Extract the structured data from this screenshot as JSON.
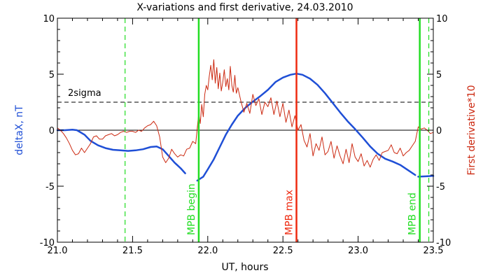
{
  "chart_data": {
    "type": "line",
    "title": "X-variations and first derivative, 24.03.2010",
    "xlabel": "UT, hours",
    "ylabel_left": "deltaX, nT",
    "ylabel_right": "First derivative*10",
    "xlim": [
      21.0,
      23.5
    ],
    "ylim": [
      -10,
      10
    ],
    "x_ticks": [
      "21.0",
      "21.5",
      "22.0",
      "22.5",
      "23.0",
      "23.5"
    ],
    "y_ticks_left": [
      "10",
      "5",
      "0",
      "-5",
      "-10"
    ],
    "y_ticks_right": [
      "10",
      "5",
      "0",
      "-5",
      "-10"
    ],
    "colors": {
      "deltax": "#1f4fd6",
      "derivative": "#cc2a12",
      "mpb_line": "#22dd22",
      "max_line": "#ee2a10",
      "axes": "#000000"
    },
    "reference_lines": [
      {
        "label": "2sigma",
        "y": 2.5,
        "style": "dashed"
      },
      {
        "label": "",
        "y": 0,
        "style": "solid"
      }
    ],
    "vertical_markers": [
      {
        "label": "",
        "x": 21.45,
        "style": "dashed",
        "color": "#22dd22"
      },
      {
        "label": "MPB begin",
        "x": 21.94,
        "style": "solid",
        "color": "#22dd22"
      },
      {
        "label": "MPB max",
        "x": 22.59,
        "style": "solid",
        "color": "#ee2a10"
      },
      {
        "label": "MPB end",
        "x": 23.41,
        "style": "solid",
        "color": "#22dd22"
      },
      {
        "label": "",
        "x": 23.47,
        "style": "dashed",
        "color": "#22dd22"
      }
    ],
    "series": [
      {
        "color": "#1f4fd6",
        "axis": "left",
        "segments": [
          {
            "x": [
              21.0,
              21.05,
              21.1,
              21.13,
              21.18,
              21.22,
              21.27,
              21.32,
              21.37,
              21.42,
              21.47,
              21.52,
              21.57,
              21.62,
              21.66,
              21.7,
              21.74,
              21.78,
              21.82,
              21.85
            ],
            "y": [
              0.0,
              0.0,
              0.05,
              0.0,
              -0.4,
              -0.95,
              -1.35,
              -1.6,
              -1.75,
              -1.8,
              -1.85,
              -1.8,
              -1.7,
              -1.5,
              -1.45,
              -1.7,
              -2.3,
              -2.9,
              -3.4,
              -3.85
            ]
          },
          {
            "x": [
              21.93,
              21.97,
              22.0,
              22.04,
              22.08,
              22.12,
              22.16,
              22.2,
              22.25,
              22.3,
              22.35,
              22.4,
              22.45,
              22.5,
              22.55,
              22.59,
              22.63,
              22.68,
              22.73,
              22.78,
              22.83,
              22.88,
              22.93,
              22.98,
              23.03,
              23.08,
              23.13,
              23.18,
              23.23,
              23.28,
              23.33,
              23.38
            ],
            "y": [
              -4.5,
              -4.15,
              -3.5,
              -2.6,
              -1.5,
              -0.4,
              0.5,
              1.3,
              2.0,
              2.55,
              3.05,
              3.6,
              4.3,
              4.7,
              4.95,
              5.05,
              4.95,
              4.6,
              4.05,
              3.3,
              2.45,
              1.6,
              0.8,
              0.1,
              -0.65,
              -1.45,
              -2.1,
              -2.55,
              -2.8,
              -3.1,
              -3.55,
              -4.0
            ]
          },
          {
            "x": [
              23.4,
              23.45,
              23.5
            ],
            "y": [
              -4.15,
              -4.12,
              -4.08
            ]
          }
        ]
      },
      {
        "color": "#cc2a12",
        "axis": "right",
        "segments": [
          {
            "x": [
              21.0,
              21.02,
              21.04,
              21.06,
              21.08,
              21.1,
              21.12,
              21.14,
              21.16,
              21.18,
              21.2,
              21.22,
              21.24,
              21.26,
              21.28,
              21.3,
              21.32,
              21.34,
              21.36,
              21.38,
              21.4,
              21.42,
              21.44,
              21.46,
              21.48,
              21.5,
              21.52,
              21.54,
              21.56,
              21.58,
              21.6,
              21.62,
              21.64,
              21.66,
              21.68,
              21.7,
              21.72,
              21.74,
              21.76,
              21.78,
              21.8,
              21.82,
              21.84,
              21.86,
              21.88,
              21.9,
              21.92,
              21.94,
              21.95,
              21.96,
              21.97,
              21.98,
              21.99,
              22.0,
              22.01,
              22.02,
              22.03,
              22.04,
              22.05,
              22.06,
              22.07,
              22.08,
              22.09,
              22.1,
              22.11,
              22.12,
              22.13,
              22.14,
              22.15,
              22.16,
              22.17,
              22.18,
              22.19,
              22.2,
              22.22,
              22.24,
              22.26,
              22.28,
              22.3,
              22.32,
              22.34,
              22.36,
              22.38,
              22.4,
              22.42,
              22.44,
              22.46,
              22.48,
              22.5,
              22.52,
              22.54,
              22.56,
              22.58,
              22.6,
              22.62,
              22.64,
              22.66,
              22.68,
              22.7,
              22.72,
              22.74,
              22.76,
              22.78,
              22.8,
              22.82,
              22.84,
              22.86,
              22.88,
              22.9,
              22.92,
              22.94,
              22.96,
              22.98,
              23.0,
              23.02,
              23.04,
              23.06,
              23.08,
              23.1,
              23.12,
              23.14,
              23.16,
              23.18,
              23.2,
              23.22,
              23.24,
              23.26,
              23.28,
              23.3,
              23.32,
              23.34,
              23.36,
              23.38,
              23.4,
              23.42,
              23.44,
              23.46,
              23.48,
              23.5
            ],
            "y": [
              0.2,
              0.0,
              -0.3,
              -0.7,
              -1.2,
              -1.8,
              -2.2,
              -2.1,
              -1.6,
              -2.0,
              -1.6,
              -1.2,
              -0.6,
              -0.5,
              -0.8,
              -0.8,
              -0.5,
              -0.4,
              -0.3,
              -0.5,
              -0.4,
              -0.2,
              -0.1,
              -0.2,
              -0.1,
              -0.1,
              -0.2,
              0.0,
              -0.1,
              0.2,
              0.4,
              0.5,
              0.8,
              0.4,
              -0.6,
              -2.4,
              -2.9,
              -2.5,
              -1.7,
              -2.1,
              -2.4,
              -2.2,
              -2.3,
              -1.7,
              -1.6,
              -1.0,
              -1.2,
              1.5,
              0.6,
              2.3,
              1.2,
              3.2,
              4.0,
              3.6,
              4.8,
              5.8,
              4.5,
              6.3,
              4.2,
              5.6,
              3.7,
              5.1,
              3.5,
              4.3,
              5.4,
              3.9,
              4.6,
              3.6,
              5.7,
              4.0,
              3.4,
              4.9,
              3.3,
              3.8,
              2.6,
              1.6,
              2.4,
              1.5,
              3.2,
              2.2,
              2.8,
              1.4,
              2.5,
              2.1,
              2.9,
              1.4,
              2.6,
              1.2,
              2.4,
              0.7,
              1.8,
              0.3,
              1.3,
              0.0,
              0.5,
              -0.9,
              -1.5,
              -0.3,
              -2.3,
              -1.2,
              -1.8,
              -0.6,
              -2.2,
              -1.9,
              -1.0,
              -2.5,
              -1.4,
              -2.3,
              -3.0,
              -1.7,
              -2.9,
              -1.2,
              -2.4,
              -2.8,
              -2.1,
              -3.2,
              -2.7,
              -3.3,
              -2.6,
              -2.2,
              -2.7,
              -2.0,
              -1.9,
              -1.8,
              -1.3,
              -2.0,
              -2.1,
              -1.6,
              -2.3,
              -2.0,
              -1.8,
              -1.4,
              -1.0,
              0.3,
              0.1,
              0.2,
              0.0,
              -0.3,
              -0.2
            ]
          }
        ]
      }
    ]
  }
}
